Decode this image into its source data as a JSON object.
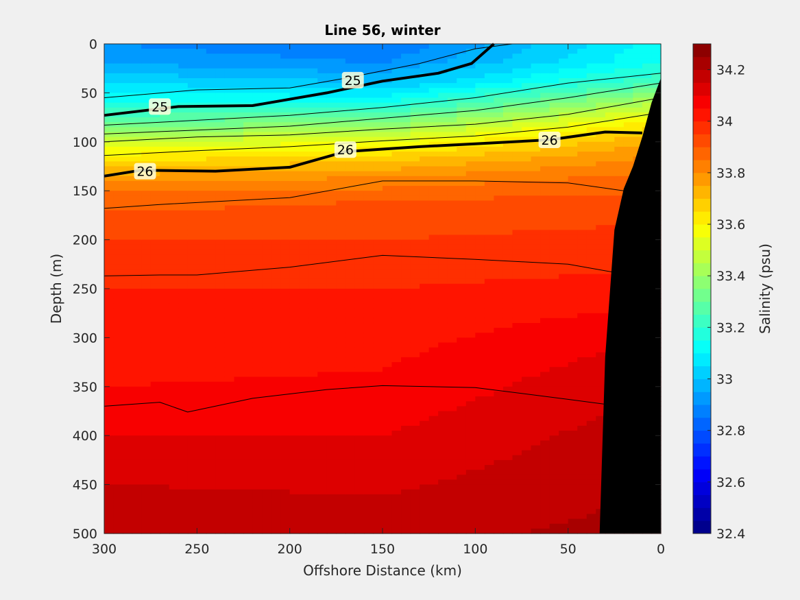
{
  "chart_data": {
    "type": "heatmap",
    "title": "Line 56, winter",
    "xlabel": "Offshore Distance (km)",
    "ylabel": "Depth (m)",
    "xlim": [
      300,
      0
    ],
    "ylim": [
      0,
      500
    ],
    "x_reversed": true,
    "y_reversed": true,
    "x_ticks": [
      300,
      250,
      200,
      150,
      100,
      50,
      0
    ],
    "y_ticks": [
      0,
      50,
      100,
      150,
      200,
      250,
      300,
      350,
      400,
      450,
      500
    ],
    "colorbar": {
      "label": "Salinity (psu)",
      "range": [
        32.4,
        34.3
      ],
      "step": 0.05,
      "ticks": [
        32.4,
        32.6,
        32.8,
        33,
        33.2,
        33.4,
        33.6,
        33.8,
        34,
        34.2
      ],
      "colormap": "jet"
    },
    "salinity_profile": {
      "depth": [
        0,
        20,
        40,
        60,
        80,
        100,
        120,
        140,
        160,
        200,
        250,
        300,
        350,
        400,
        450,
        500
      ],
      "x300": [
        32.9,
        32.95,
        33.05,
        33.15,
        33.3,
        33.5,
        33.65,
        33.8,
        33.88,
        33.95,
        34.0,
        34.02,
        34.05,
        34.1,
        34.15,
        34.2
      ],
      "x150": [
        32.85,
        32.9,
        33.0,
        33.15,
        33.35,
        33.55,
        33.7,
        33.82,
        33.9,
        33.95,
        34.0,
        34.03,
        34.06,
        34.1,
        34.14,
        34.18
      ],
      "x0": [
        33.12,
        33.15,
        33.25,
        33.45,
        33.62,
        33.75,
        33.82,
        33.88,
        33.92,
        33.97,
        34.02,
        34.1,
        34.15,
        34.18,
        34.2,
        34.22
      ]
    },
    "density_contours": [
      {
        "label": "",
        "bold": false,
        "points": [
          [
            300,
            55
          ],
          [
            250,
            47
          ],
          [
            200,
            45
          ],
          [
            170,
            35
          ],
          [
            130,
            20
          ],
          [
            100,
            5
          ],
          [
            80,
            0
          ]
        ]
      },
      {
        "label": "25",
        "bold": true,
        "points": [
          [
            300,
            73
          ],
          [
            260,
            64
          ],
          [
            220,
            63
          ],
          [
            180,
            50
          ],
          [
            150,
            38
          ],
          [
            120,
            30
          ],
          [
            102,
            20
          ],
          [
            90,
            0
          ]
        ]
      },
      {
        "label": "",
        "bold": false,
        "points": [
          [
            300,
            83
          ],
          [
            250,
            78
          ],
          [
            200,
            73
          ],
          [
            150,
            65
          ],
          [
            100,
            55
          ],
          [
            50,
            40
          ],
          [
            0,
            30
          ]
        ]
      },
      {
        "label": "",
        "bold": false,
        "points": [
          [
            300,
            92
          ],
          [
            250,
            88
          ],
          [
            200,
            84
          ],
          [
            150,
            76
          ],
          [
            100,
            68
          ],
          [
            50,
            55
          ],
          [
            0,
            40
          ]
        ]
      },
      {
        "label": "",
        "bold": false,
        "points": [
          [
            300,
            100
          ],
          [
            250,
            95
          ],
          [
            200,
            93
          ],
          [
            150,
            87
          ],
          [
            100,
            82
          ],
          [
            50,
            72
          ],
          [
            0,
            55
          ]
        ]
      },
      {
        "label": "",
        "bold": false,
        "points": [
          [
            300,
            114
          ],
          [
            250,
            109
          ],
          [
            200,
            105
          ],
          [
            150,
            99
          ],
          [
            100,
            94
          ],
          [
            50,
            85
          ],
          [
            0,
            70
          ]
        ]
      },
      {
        "label": "26",
        "bold": true,
        "points": [
          [
            300,
            135
          ],
          [
            280,
            129
          ],
          [
            240,
            130
          ],
          [
            200,
            126
          ],
          [
            170,
            110
          ],
          [
            130,
            105
          ],
          [
            100,
            102
          ],
          [
            60,
            98
          ],
          [
            30,
            90
          ],
          [
            10,
            91
          ]
        ]
      },
      {
        "label": "",
        "bold": false,
        "points": [
          [
            300,
            168
          ],
          [
            270,
            164
          ],
          [
            200,
            157
          ],
          [
            150,
            140
          ],
          [
            100,
            140
          ],
          [
            50,
            142
          ],
          [
            20,
            150
          ]
        ]
      },
      {
        "label": "",
        "bold": false,
        "points": [
          [
            300,
            237
          ],
          [
            270,
            236
          ],
          [
            250,
            236
          ],
          [
            200,
            228
          ],
          [
            150,
            216
          ],
          [
            100,
            220
          ],
          [
            50,
            225
          ],
          [
            20,
            235
          ]
        ]
      },
      {
        "label": "",
        "bold": false,
        "points": [
          [
            300,
            370
          ],
          [
            270,
            366
          ],
          [
            255,
            376
          ],
          [
            220,
            362
          ],
          [
            180,
            353
          ],
          [
            150,
            349
          ],
          [
            100,
            351
          ],
          [
            50,
            363
          ],
          [
            30,
            368
          ]
        ]
      }
    ],
    "label_positions": [
      {
        "text": "25",
        "x": 270,
        "depth": 64
      },
      {
        "text": "25",
        "x": 166,
        "depth": 37
      },
      {
        "text": "26",
        "x": 278,
        "depth": 130
      },
      {
        "text": "26",
        "x": 170,
        "depth": 108
      },
      {
        "text": "26",
        "x": 60,
        "depth": 98
      }
    ],
    "bathymetry": [
      [
        0,
        35
      ],
      [
        5,
        60
      ],
      [
        10,
        95
      ],
      [
        15,
        125
      ],
      [
        20,
        148
      ],
      [
        25,
        190
      ],
      [
        30,
        320
      ],
      [
        33,
        500
      ],
      [
        0,
        500
      ]
    ]
  }
}
